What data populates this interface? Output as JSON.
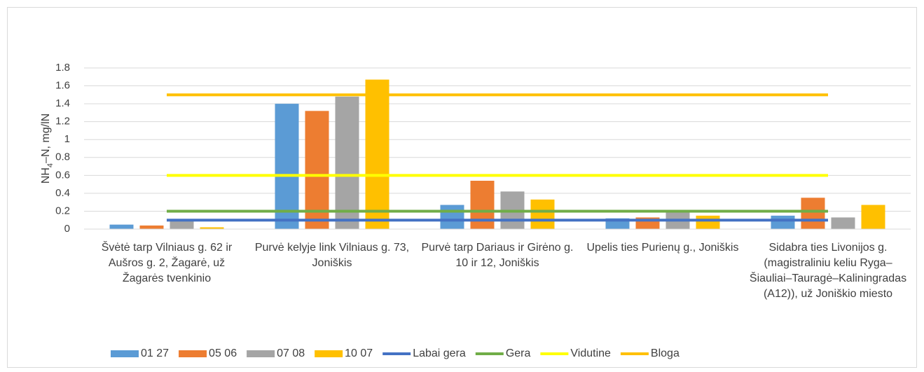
{
  "chart_data": {
    "type": "bar",
    "y_label": [
      "NH",
      "4",
      "–N, mg/lN"
    ],
    "categories": [
      "Švėtė tarp Vilniaus g. 62 ir Aušros g. 2, Žagarė, už Žagarės tvenkinio",
      "Purvė kelyje link Vilniaus g. 73, Joniškis",
      "Purvė tarp Dariaus ir Girėno g. 10 ir 12, Joniškis",
      "Upelis ties Purienų g., Joniškis",
      "Sidabra ties Livonijos g. (magistraliniu keliu Ryga–Šiauliai–Tauragė–Kaliningradas (A12)), už Joniškio miesto"
    ],
    "series": [
      {
        "name": "01 27",
        "type": "bar",
        "color": "#5b9bd5",
        "values": [
          0.05,
          1.4,
          0.27,
          0.12,
          0.15
        ]
      },
      {
        "name": "05 06",
        "type": "bar",
        "color": "#ed7d31",
        "values": [
          0.04,
          1.32,
          0.54,
          0.13,
          0.35
        ]
      },
      {
        "name": "07 08",
        "type": "bar",
        "color": "#a5a5a5",
        "values": [
          0.1,
          1.48,
          0.42,
          0.21,
          0.13
        ]
      },
      {
        "name": "10 07",
        "type": "bar",
        "color": "#ffc000",
        "values": [
          0.02,
          1.67,
          0.33,
          0.15,
          0.27
        ]
      },
      {
        "name": "Labai gera",
        "type": "line",
        "color": "#4472c4",
        "values": [
          0.1,
          0.1,
          0.1,
          0.1,
          0.1
        ]
      },
      {
        "name": "Gera",
        "type": "line",
        "color": "#70ad47",
        "values": [
          0.2,
          0.2,
          0.2,
          0.2,
          0.2
        ]
      },
      {
        "name": "Vidutine",
        "type": "line",
        "color": "#ffff00",
        "values": [
          0.6,
          0.6,
          0.6,
          0.6,
          0.6
        ]
      },
      {
        "name": "Bloga",
        "type": "line",
        "color": "#ffc000",
        "values": [
          1.5,
          1.5,
          1.5,
          1.5,
          1.5
        ]
      }
    ],
    "ylim": [
      0,
      1.8
    ],
    "yticks": [
      0,
      0.2,
      0.4,
      0.6,
      0.8,
      1,
      1.2,
      1.4,
      1.6,
      1.8
    ],
    "grid": true
  }
}
